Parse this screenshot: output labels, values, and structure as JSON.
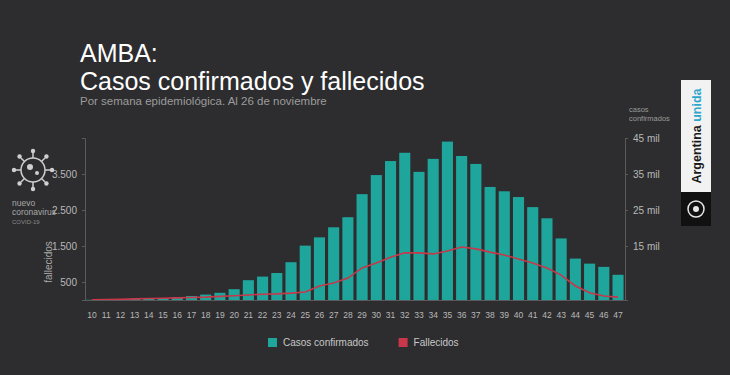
{
  "chart_data": {
    "type": "bar",
    "title": "AMBA: Casos confirmados y fallecidos",
    "subtitle": "Por semana epidemiológica. Al 26 de noviembre",
    "y_label": "fallecidos",
    "y2_label": "casos confirmados",
    "categories": [
      "10",
      "11",
      "12",
      "13",
      "14",
      "15",
      "16",
      "17",
      "18",
      "19",
      "20",
      "21",
      "22",
      "23",
      "24",
      "25",
      "26",
      "27",
      "28",
      "29",
      "30",
      "31",
      "32",
      "33",
      "34",
      "35",
      "36",
      "37",
      "38",
      "39",
      "40",
      "41",
      "42",
      "43",
      "44",
      "45",
      "46",
      "47"
    ],
    "series": [
      {
        "name": "Casos confirmados",
        "type": "bar",
        "axis": "y2",
        "color": "#1fa69c",
        "values": [
          50,
          100,
          200,
          300,
          400,
          500,
          800,
          1100,
          1500,
          2000,
          3000,
          5500,
          6500,
          7500,
          10500,
          15100,
          17400,
          20200,
          23000,
          29400,
          34700,
          38600,
          40900,
          35600,
          39200,
          44000,
          40000,
          37800,
          31400,
          30200,
          28600,
          25800,
          22700,
          17100,
          11500,
          10100,
          9200,
          7000
        ]
      },
      {
        "name": "Fallecidos",
        "type": "line",
        "color": "#c8374a",
        "values": [
          5,
          10,
          20,
          30,
          40,
          50,
          60,
          70,
          80,
          100,
          120,
          140,
          160,
          170,
          190,
          220,
          390,
          470,
          610,
          890,
          1030,
          1190,
          1310,
          1310,
          1280,
          1360,
          1470,
          1420,
          1330,
          1250,
          1140,
          1030,
          890,
          690,
          390,
          200,
          110,
          80
        ]
      }
    ],
    "ylim": [
      0,
      4500
    ],
    "yticks": [
      500,
      {
        "value": 1500,
        "label": "1.500"
      },
      {
        "value": 2500,
        "label": "2.500"
      },
      {
        "value": 3500,
        "label": "3.500"
      }
    ],
    "y2lim": [
      0,
      45000
    ],
    "y2ticks": [
      {
        "value": 15000,
        "label": "15 mil"
      },
      {
        "value": 25000,
        "label": "25 mil"
      },
      {
        "value": 35000,
        "label": "35 mil"
      },
      {
        "value": 45000,
        "label": "45 mil"
      }
    ],
    "grid": false,
    "legend": "bottom",
    "annotations": [
      "nuevo coronavirus",
      "COVID-19",
      "Argentina unida"
    ]
  }
}
